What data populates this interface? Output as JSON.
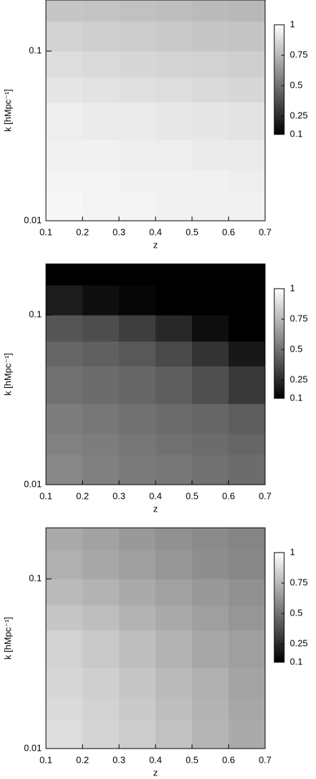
{
  "chart_data": [
    {
      "type": "heatmap",
      "xlabel": "z",
      "ylabel": "k [hMpc⁻¹]",
      "log_y": true,
      "xlim": [
        0.1,
        0.7
      ],
      "ylim": [
        0.01,
        0.2
      ],
      "xticks": [
        0.1,
        0.2,
        0.3,
        0.4,
        0.5,
        0.6,
        0.7
      ],
      "yticks": [
        0.01,
        0.1
      ],
      "xbins": [
        0.1,
        0.2,
        0.3,
        0.4,
        0.5,
        0.6,
        0.7
      ],
      "ybins": [
        0.01,
        0.015,
        0.02,
        0.03,
        0.05,
        0.07,
        0.1,
        0.15,
        0.2
      ],
      "zlim": [
        0.1,
        1
      ],
      "zticks": [
        1,
        0.75,
        0.5,
        0.25,
        0.1
      ],
      "values": [
        [
          0.97,
          0.96,
          0.96,
          0.95,
          0.95,
          0.95
        ],
        [
          0.96,
          0.96,
          0.95,
          0.95,
          0.95,
          0.94
        ],
        [
          0.95,
          0.95,
          0.94,
          0.94,
          0.93,
          0.93
        ],
        [
          0.94,
          0.93,
          0.93,
          0.92,
          0.91,
          0.9
        ],
        [
          0.91,
          0.9,
          0.89,
          0.88,
          0.87,
          0.86
        ],
        [
          0.88,
          0.87,
          0.86,
          0.85,
          0.84,
          0.83
        ],
        [
          0.84,
          0.83,
          0.82,
          0.81,
          0.8,
          0.79
        ],
        [
          0.8,
          0.79,
          0.78,
          0.77,
          0.76,
          0.75
        ]
      ]
    },
    {
      "type": "heatmap",
      "xlabel": "z",
      "ylabel": "k [hMpc⁻¹]",
      "log_y": true,
      "xlim": [
        0.1,
        0.7
      ],
      "ylim": [
        0.01,
        0.2
      ],
      "xticks": [
        0.1,
        0.2,
        0.3,
        0.4,
        0.5,
        0.6,
        0.7
      ],
      "yticks": [
        0.01,
        0.1
      ],
      "xbins": [
        0.1,
        0.2,
        0.3,
        0.4,
        0.5,
        0.6,
        0.7
      ],
      "ybins": [
        0.01,
        0.015,
        0.02,
        0.03,
        0.05,
        0.07,
        0.1,
        0.15,
        0.2
      ],
      "zlim": [
        0.1,
        1
      ],
      "zticks": [
        1,
        0.75,
        0.5,
        0.25,
        0.1
      ],
      "values": [
        [
          0.58,
          0.55,
          0.53,
          0.52,
          0.5,
          0.48
        ],
        [
          0.56,
          0.54,
          0.52,
          0.5,
          0.48,
          0.46
        ],
        [
          0.54,
          0.52,
          0.5,
          0.48,
          0.46,
          0.43
        ],
        [
          0.5,
          0.48,
          0.46,
          0.43,
          0.38,
          0.3
        ],
        [
          0.46,
          0.44,
          0.41,
          0.36,
          0.28,
          0.18
        ],
        [
          0.4,
          0.37,
          0.32,
          0.24,
          0.15,
          0.1
        ],
        [
          0.2,
          0.15,
          0.12,
          0.1,
          0.1,
          0.1
        ],
        [
          0.1,
          0.1,
          0.1,
          0.1,
          0.1,
          0.1
        ]
      ]
    },
    {
      "type": "heatmap",
      "xlabel": "z",
      "ylabel": "k [hMpc⁻¹]",
      "log_y": true,
      "xlim": [
        0.1,
        0.7
      ],
      "ylim": [
        0.01,
        0.2
      ],
      "xticks": [
        0.1,
        0.2,
        0.3,
        0.4,
        0.5,
        0.6,
        0.7
      ],
      "yticks": [
        0.01,
        0.1
      ],
      "xbins": [
        0.1,
        0.2,
        0.3,
        0.4,
        0.5,
        0.6,
        0.7
      ],
      "ybins": [
        0.01,
        0.015,
        0.02,
        0.03,
        0.05,
        0.07,
        0.1,
        0.15,
        0.2
      ],
      "zlim": [
        0.1,
        1
      ],
      "zticks": [
        1,
        0.75,
        0.5,
        0.25,
        0.1
      ],
      "values": [
        [
          0.88,
          0.85,
          0.82,
          0.78,
          0.74,
          0.7
        ],
        [
          0.87,
          0.84,
          0.81,
          0.77,
          0.73,
          0.69
        ],
        [
          0.86,
          0.83,
          0.8,
          0.76,
          0.72,
          0.68
        ],
        [
          0.84,
          0.81,
          0.77,
          0.73,
          0.69,
          0.66
        ],
        [
          0.8,
          0.77,
          0.73,
          0.7,
          0.66,
          0.63
        ],
        [
          0.76,
          0.73,
          0.7,
          0.67,
          0.64,
          0.61
        ],
        [
          0.72,
          0.69,
          0.66,
          0.63,
          0.6,
          0.58
        ],
        [
          0.7,
          0.67,
          0.64,
          0.61,
          0.59,
          0.57
        ]
      ]
    }
  ]
}
